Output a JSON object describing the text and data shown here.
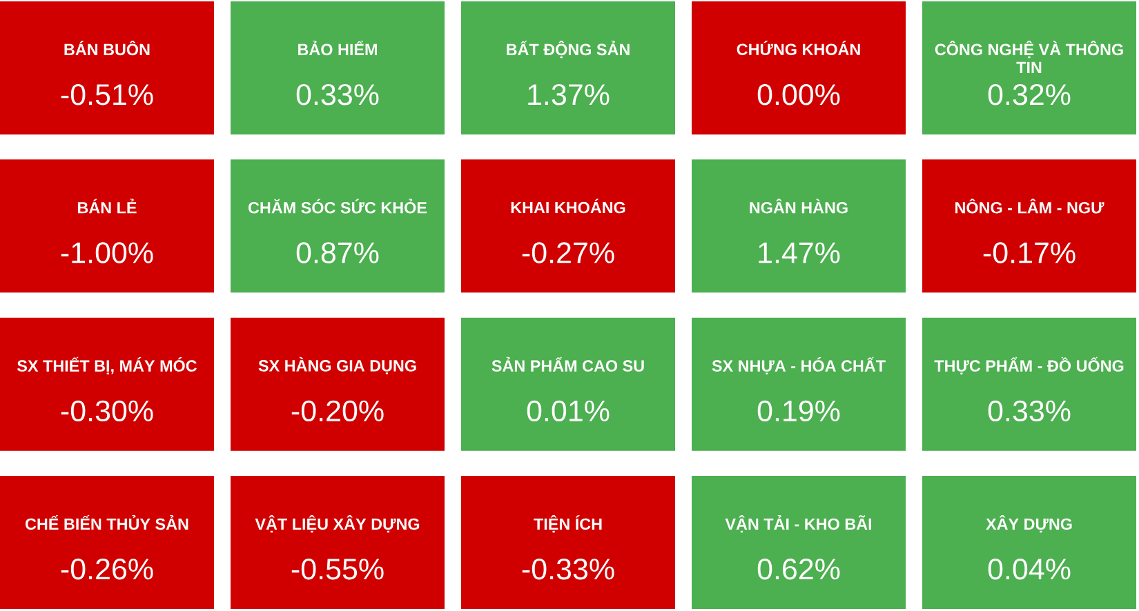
{
  "chart_data": {
    "type": "other",
    "categories": [
      "BÁN BUÔN",
      "BẢO HIỂM",
      "BẤT ĐỘNG SẢN",
      "CHỨNG KHOÁN",
      "CÔNG NGHỆ VÀ THÔNG TIN",
      "BÁN LẺ",
      "CHĂM SÓC SỨC KHỎE",
      "KHAI KHOÁNG",
      "NGÂN HÀNG",
      "NÔNG - LÂM - NGƯ",
      "SX THIẾT BỊ, MÁY MÓC",
      "SX HÀNG GIA DỤNG",
      "SẢN PHẨM CAO SU",
      "SX NHỰA - HÓA CHẤT",
      "THỰC PHẨM - ĐỒ UỐNG",
      "CHẾ BIẾN THỦY SẢN",
      "VẬT LIỆU XÂY DỰNG",
      "TIỆN ÍCH",
      "VẬN TẢI - KHO BÃI",
      "XÂY DỰNG"
    ],
    "values": [
      -0.51,
      0.33,
      1.37,
      0.0,
      0.32,
      -1.0,
      0.87,
      -0.27,
      1.47,
      -0.17,
      -0.3,
      -0.2,
      0.01,
      0.19,
      0.33,
      -0.26,
      -0.55,
      -0.33,
      0.62,
      0.04
    ],
    "value_labels": [
      "-0.51%",
      "0.33%",
      "1.37%",
      "0.00%",
      "0.32%",
      "-1.00%",
      "0.87%",
      "-0.27%",
      "1.47%",
      "-0.17%",
      "-0.30%",
      "-0.20%",
      "0.01%",
      "0.19%",
      "0.33%",
      "-0.26%",
      "-0.55%",
      "-0.33%",
      "0.62%",
      "0.04%"
    ]
  }
}
